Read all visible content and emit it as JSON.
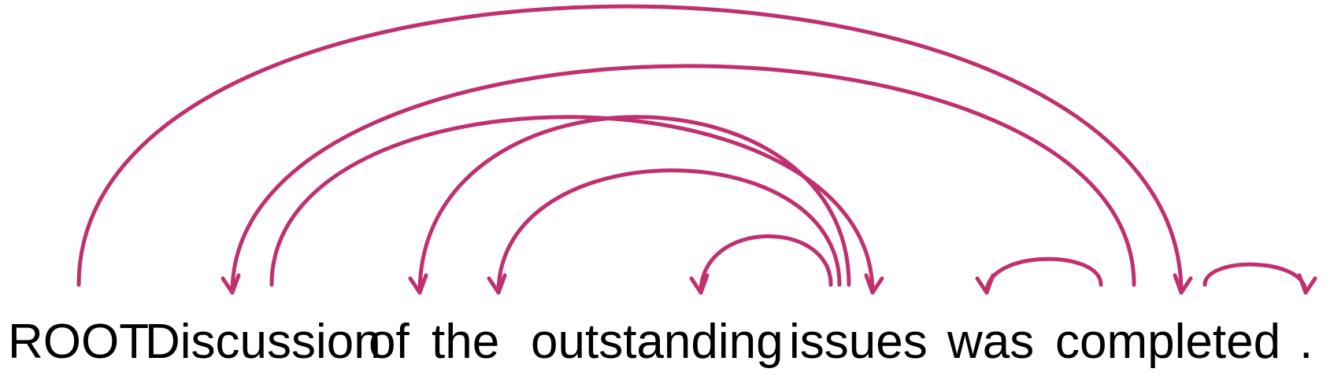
{
  "tokens": [
    "ROOT",
    "Discussion",
    "of",
    "the",
    "outstanding",
    "issues",
    "was",
    "completed",
    "."
  ],
  "arcs": [
    {
      "from": 0,
      "to": 7
    },
    {
      "from": 7,
      "to": 1
    },
    {
      "from": 5,
      "to": 2
    },
    {
      "from": 5,
      "to": 3
    },
    {
      "from": 5,
      "to": 4
    },
    {
      "from": 1,
      "to": 5
    },
    {
      "from": 7,
      "to": 6
    },
    {
      "from": 7,
      "to": 8
    }
  ],
  "colors": {
    "arc": "#c0306e",
    "text": "#000000",
    "background": "#ffffff"
  }
}
